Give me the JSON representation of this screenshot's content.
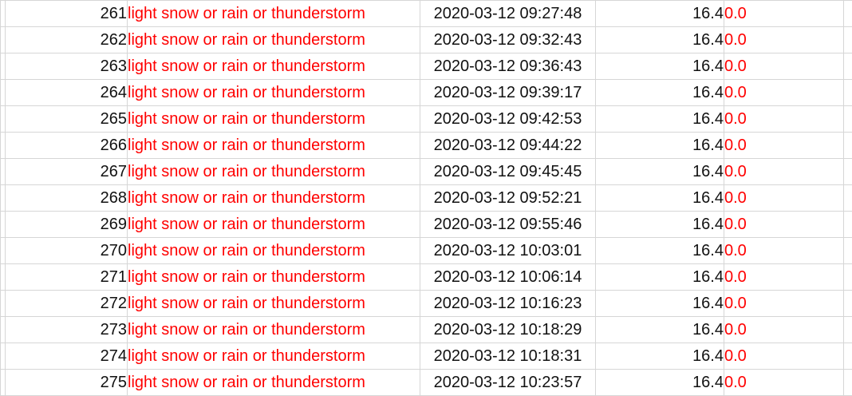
{
  "colors": {
    "accent_text": "#ff0000",
    "gridline": "#d6d6d6",
    "text": "#111111"
  },
  "rows": [
    {
      "id": "261",
      "condition": "light snow or rain or thunderstorm",
      "timestamp": "2020-03-12 09:27:48",
      "value": "16.4",
      "extra": "0.0"
    },
    {
      "id": "262",
      "condition": "light snow or rain or thunderstorm",
      "timestamp": "2020-03-12 09:32:43",
      "value": "16.4",
      "extra": "0.0"
    },
    {
      "id": "263",
      "condition": "light snow or rain or thunderstorm",
      "timestamp": "2020-03-12 09:36:43",
      "value": "16.4",
      "extra": "0.0"
    },
    {
      "id": "264",
      "condition": "light snow or rain or thunderstorm",
      "timestamp": "2020-03-12 09:39:17",
      "value": "16.4",
      "extra": "0.0"
    },
    {
      "id": "265",
      "condition": "light snow or rain or thunderstorm",
      "timestamp": "2020-03-12 09:42:53",
      "value": "16.4",
      "extra": "0.0"
    },
    {
      "id": "266",
      "condition": "light snow or rain or thunderstorm",
      "timestamp": "2020-03-12 09:44:22",
      "value": "16.4",
      "extra": "0.0"
    },
    {
      "id": "267",
      "condition": "light snow or rain or thunderstorm",
      "timestamp": "2020-03-12 09:45:45",
      "value": "16.4",
      "extra": "0.0"
    },
    {
      "id": "268",
      "condition": "light snow or rain or thunderstorm",
      "timestamp": "2020-03-12 09:52:21",
      "value": "16.4",
      "extra": "0.0"
    },
    {
      "id": "269",
      "condition": "light snow or rain or thunderstorm",
      "timestamp": "2020-03-12 09:55:46",
      "value": "16.4",
      "extra": "0.0"
    },
    {
      "id": "270",
      "condition": "light snow or rain or thunderstorm",
      "timestamp": "2020-03-12 10:03:01",
      "value": "16.4",
      "extra": "0.0"
    },
    {
      "id": "271",
      "condition": "light snow or rain or thunderstorm",
      "timestamp": "2020-03-12 10:06:14",
      "value": "16.4",
      "extra": "0.0"
    },
    {
      "id": "272",
      "condition": "light snow or rain or thunderstorm",
      "timestamp": "2020-03-12 10:16:23",
      "value": "16.4",
      "extra": "0.0"
    },
    {
      "id": "273",
      "condition": "light snow or rain or thunderstorm",
      "timestamp": "2020-03-12 10:18:29",
      "value": "16.4",
      "extra": "0.0"
    },
    {
      "id": "274",
      "condition": "light snow or rain or thunderstorm",
      "timestamp": "2020-03-12 10:18:31",
      "value": "16.4",
      "extra": "0.0"
    },
    {
      "id": "275",
      "condition": "light snow or rain or thunderstorm",
      "timestamp": "2020-03-12 10:23:57",
      "value": "16.4",
      "extra": "0.0"
    }
  ]
}
